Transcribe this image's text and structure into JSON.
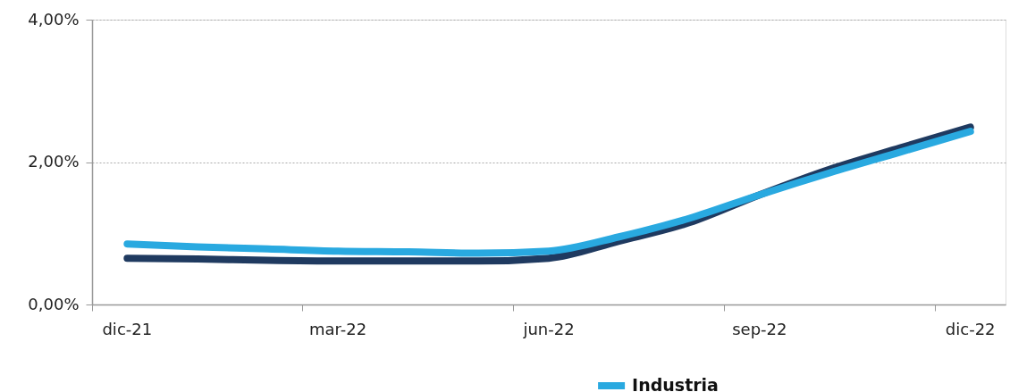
{
  "chart_data": {
    "type": "line",
    "categories": [
      "dic-21",
      null,
      null,
      "mar-22",
      null,
      null,
      "jun-22",
      null,
      null,
      "sep-22",
      null,
      null,
      "dic-22"
    ],
    "series": [
      {
        "color": "#1f3a60",
        "values": [
          0.65,
          0.64,
          0.62,
          0.61,
          0.61,
          0.61,
          0.65,
          0.89,
          1.15,
          1.54,
          1.9,
          2.2,
          2.49
        ]
      },
      {
        "name": "Industria",
        "color": "#29a9e0",
        "values": [
          0.85,
          0.81,
          0.78,
          0.75,
          0.74,
          0.72,
          0.75,
          0.95,
          1.21,
          1.54,
          1.85,
          2.14,
          2.43
        ]
      }
    ],
    "ylim": [
      0,
      4
    ],
    "yticks": [
      {
        "value": 0,
        "label": "0,00%"
      },
      {
        "value": 2,
        "label": "2,00%"
      },
      {
        "value": 4,
        "label": "4,00%"
      }
    ],
    "grid": "y",
    "legend": "bottom"
  }
}
